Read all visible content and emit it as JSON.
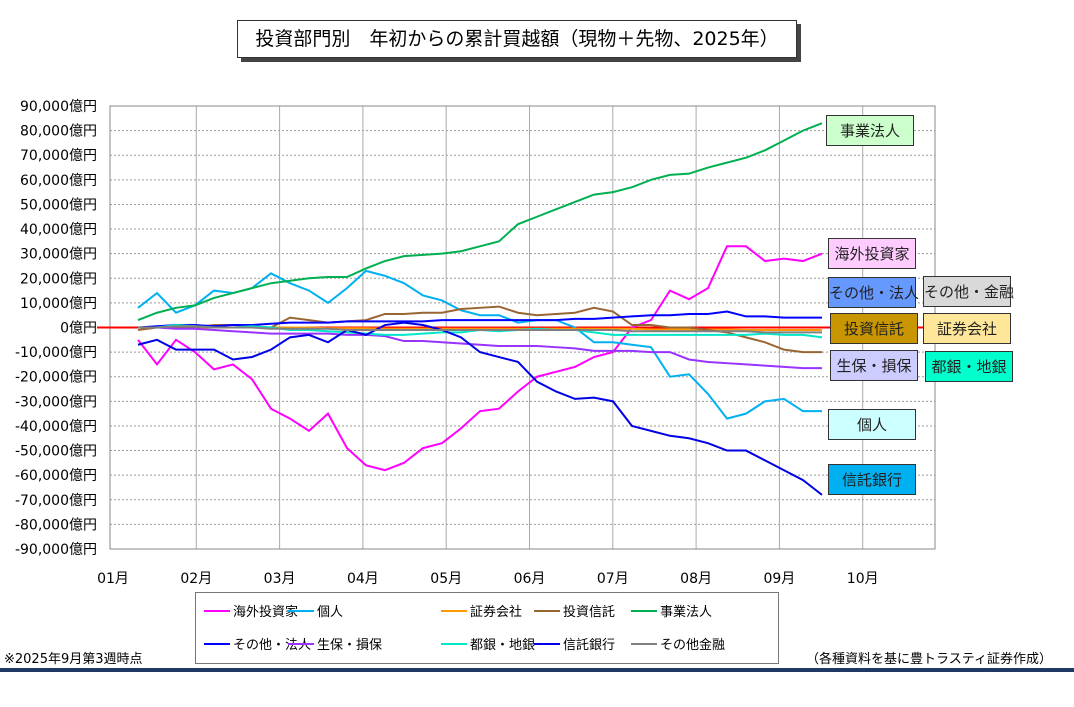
{
  "chart_data": {
    "type": "line",
    "title": "投資部門別　年初からの累計買越額（現物＋先物、2025年）",
    "ylim": [
      -90000,
      90000
    ],
    "y_step": 10000,
    "y_ticks": [
      "90,000億円",
      "80,000億円",
      "70,000億円",
      "60,000億円",
      "50,000億円",
      "40,000億円",
      "30,000億円",
      "20,000億円",
      "10,000億円",
      "0億円",
      "-10,000億円",
      "-20,000億円",
      "-30,000億円",
      "-40,000億円",
      "-50,000億円",
      "-60,000億円",
      "-70,000億円",
      "-80,000億円",
      "-90,000億円"
    ],
    "x_ticks": [
      "01月",
      "02月",
      "03月",
      "04月",
      "05月",
      "06月",
      "07月",
      "08月",
      "09月",
      "10月"
    ],
    "x_unit": "week (weekly data points, 2025)",
    "grid": true,
    "series": [
      {
        "name": "海外投資家",
        "color": "#ff00ff",
        "values": [
          -5,
          -15,
          -5,
          -10,
          -17,
          -15,
          -21,
          -33,
          -37,
          -42,
          -35,
          -49,
          -56,
          -58,
          -55,
          -49,
          -47,
          -41,
          -34,
          -33,
          -26,
          -20,
          -18,
          -16,
          -12,
          -10,
          0,
          3,
          15,
          11.5,
          16,
          33,
          33,
          27,
          28,
          27,
          30
        ]
      },
      {
        "name": "個人",
        "color": "#00b0f0",
        "values": [
          8,
          14,
          6,
          9,
          15,
          14,
          16,
          22,
          18,
          15,
          10,
          16,
          23,
          21,
          18,
          13,
          11,
          7,
          5,
          5,
          2,
          3,
          3,
          0,
          -6,
          -6,
          -7,
          -8,
          -20,
          -19,
          -27,
          -37,
          -35,
          -30,
          -29,
          -34,
          -34
        ]
      },
      {
        "name": "証券会社",
        "color": "#ff9900",
        "values": [
          0,
          0,
          0,
          0,
          0,
          0,
          0,
          0,
          0,
          0,
          -0.3,
          -0.3,
          -0.3,
          -0.5,
          -0.5,
          -0.5,
          -0.5,
          -0.5,
          -0.5,
          -0.5,
          -0.5,
          -0.5,
          -0.5,
          -0.5,
          -0.5,
          -0.5,
          -0.5,
          -0.8,
          -0.8,
          -0.8,
          -0.8,
          -0.8,
          -1,
          -1,
          -1,
          -1,
          -1
        ]
      },
      {
        "name": "投資信託",
        "color": "#996633",
        "values": [
          -1,
          0,
          0,
          0,
          1,
          1,
          0.5,
          0,
          4,
          3,
          2,
          2.5,
          3,
          5.5,
          5.5,
          6,
          6,
          7.5,
          8,
          8.5,
          6,
          5,
          5.5,
          6,
          8,
          6.5,
          1,
          1,
          0,
          0,
          -1,
          -2,
          -4,
          -6,
          -9,
          -10,
          -10
        ]
      },
      {
        "name": "事業法人",
        "color": "#00b050",
        "values": [
          3,
          6,
          8,
          9,
          12,
          14,
          16,
          18,
          19,
          20,
          20.5,
          20.5,
          24,
          27,
          29,
          29.5,
          30,
          31,
          33,
          35,
          42,
          45,
          48,
          51,
          54,
          55,
          57,
          60,
          62,
          62.5,
          65,
          67,
          69,
          72,
          76,
          80,
          83
        ]
      },
      {
        "name": "その他・法人",
        "color": "#0000ff",
        "values": [
          0,
          0.5,
          1,
          1,
          0.5,
          1,
          1,
          1.5,
          2,
          2,
          2,
          2.5,
          2.5,
          2.5,
          2.5,
          2.5,
          3,
          3,
          3,
          3,
          3,
          3,
          3,
          3.5,
          3.5,
          4,
          4.5,
          5,
          5,
          5.5,
          5.5,
          6.5,
          4.5,
          4.5,
          4,
          4,
          4
        ]
      },
      {
        "name": "生保・損保",
        "color": "#9933ff",
        "values": [
          0,
          0,
          -0.5,
          -0.5,
          -1,
          -1.5,
          -2,
          -2.5,
          -2.5,
          -2.5,
          -2.5,
          -3,
          -3,
          -3.5,
          -5.5,
          -5.5,
          -6,
          -6.5,
          -7,
          -7.5,
          -7.5,
          -7.5,
          -8,
          -8.5,
          -9.5,
          -9.5,
          -9.5,
          -10,
          -10,
          -13,
          -14,
          -14.5,
          -15,
          -15.5,
          -16,
          -16.5,
          -16.5
        ]
      },
      {
        "name": "都銀・地銀",
        "color": "#00e6c8",
        "values": [
          0,
          0,
          1,
          0.5,
          0,
          0,
          0.5,
          0,
          -1,
          -1,
          -1.5,
          -2,
          -2.5,
          -3,
          -3,
          -2.5,
          -2,
          -2,
          -1,
          -1.5,
          -1,
          -0.5,
          -1,
          -1,
          -2,
          -3,
          -3,
          -3,
          -3,
          -3,
          -3,
          -3,
          -3,
          -2.5,
          -3,
          -3,
          -4
        ]
      },
      {
        "name": "信託銀行",
        "color": "#0000e6",
        "values": [
          -7,
          -5,
          -9,
          -9,
          -9,
          -13,
          -12,
          -9,
          -4,
          -3,
          -6,
          -1,
          -3,
          1,
          2,
          1,
          -1,
          -4,
          -10,
          -12,
          -14,
          -22,
          -26,
          -29,
          -28.5,
          -30,
          -40,
          -42,
          -44,
          -45,
          -47,
          -50,
          -50,
          -54,
          -58,
          -62,
          -68
        ]
      },
      {
        "name": "その他金融",
        "color": "#808080",
        "values": [
          0,
          0,
          0.5,
          0.5,
          0,
          0,
          0,
          -0.5,
          -0.5,
          -0.5,
          -0.5,
          -1,
          -1,
          -1,
          -1,
          -1,
          -1,
          -1,
          -1,
          -1,
          -1,
          -1,
          -1,
          -1,
          -1,
          -1,
          -1.5,
          -1.5,
          -1.5,
          -1.5,
          -1.5,
          -1.5,
          -1.5,
          -2,
          -2,
          -2,
          -2
        ]
      }
    ],
    "values_unit": "thousand 億円"
  },
  "labels": {
    "jigyo": "事業法人",
    "kaigai": "海外投資家",
    "sonota_hojin": "その他・法人",
    "sonota_kinyu": "その他・金融",
    "toshin": "投資信託",
    "shoken": "証券会社",
    "seiho": "生保・損保",
    "toginchigin": "都銀・地銀",
    "kojin": "個人",
    "shintaku": "信託銀行"
  },
  "legend": [
    "海外投資家",
    "個人",
    "証券会社",
    "投資信託",
    "事業法人",
    "その他・法人",
    "生保・損保",
    "都銀・地銀",
    "信託銀行",
    "その他金融"
  ],
  "footnote": "※2025年9月第3週時点",
  "source": "（各種資料を基に豊トラスティ証券作成）"
}
